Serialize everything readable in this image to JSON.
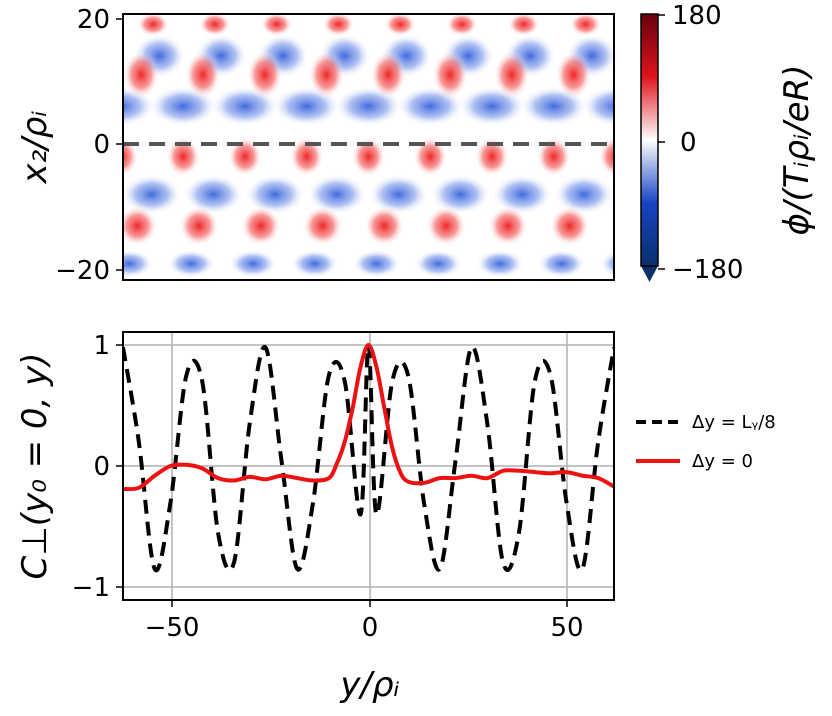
{
  "chart_data": [
    {
      "type": "heatmap",
      "panel": "top",
      "xrange": [
        -62,
        62
      ],
      "ylim": [
        -21,
        21
      ],
      "yticks": [
        "20",
        "0",
        "−20"
      ],
      "ytick_values": [
        20,
        0,
        -20
      ],
      "ylabel": "x₂/ρᵢ",
      "colorbar": {
        "label": "ϕ/(Tᵢρᵢ/eR)",
        "ticks": [
          "180",
          "0",
          "−180"
        ],
        "tick_values": [
          180,
          0,
          -180
        ],
        "range": [
          -180,
          180
        ],
        "colors": [
          "#08306b",
          "#1744c4",
          "#ffffff",
          "#e0141c",
          "#67000d"
        ]
      },
      "reference_line": {
        "y": 0,
        "style": "dashed",
        "color": "#555555"
      }
    },
    {
      "type": "line",
      "panel": "bottom",
      "xlim": [
        -62,
        62
      ],
      "ylim": [
        -1.1,
        1.1
      ],
      "xticks": [
        "−50",
        "0",
        "50"
      ],
      "xtick_values": [
        -50,
        0,
        50
      ],
      "yticks": [
        "1",
        "0",
        "−1"
      ],
      "ytick_values": [
        1,
        0,
        -1
      ],
      "xlabel": "y/ρᵢ",
      "ylabel": "C⊥(y₀ = 0, y)",
      "grid": true,
      "legend_position": "right",
      "series": [
        {
          "name": "Δy = L_y/8",
          "legend_label": "Δy = Lᵧ/8",
          "color": "#000000",
          "style": "dashed",
          "x": [
            -62,
            -58,
            -54,
            -50,
            -46,
            -42,
            -38,
            -34,
            -30,
            -26,
            -22,
            -18,
            -14,
            -10,
            -6,
            -2,
            0,
            2,
            6,
            10,
            14,
            18,
            22,
            26,
            30,
            34,
            38,
            42,
            46,
            50,
            54,
            58,
            62
          ],
          "y": [
            0.98,
            0.2,
            -0.85,
            -0.3,
            0.75,
            0.7,
            -0.55,
            -0.8,
            0.35,
            0.98,
            0.05,
            -0.85,
            -0.3,
            0.75,
            0.7,
            -0.4,
            1.0,
            -0.4,
            0.7,
            0.75,
            -0.3,
            -0.85,
            0.05,
            0.98,
            0.35,
            -0.8,
            -0.55,
            0.7,
            0.75,
            -0.3,
            -0.85,
            0.2,
            0.98
          ]
        },
        {
          "name": "Δy = 0",
          "legend_label": "Δy = 0",
          "color": "#ee1111",
          "style": "solid",
          "x": [
            -62,
            -58,
            -54,
            -50,
            -46,
            -42,
            -38,
            -34,
            -30,
            -26,
            -22,
            -18,
            -14,
            -10,
            -8,
            -6,
            -4,
            -2,
            0,
            2,
            4,
            6,
            8,
            10,
            14,
            18,
            22,
            26,
            30,
            34,
            38,
            42,
            46,
            50,
            54,
            58,
            62
          ],
          "y": [
            -0.19,
            -0.18,
            -0.08,
            0.0,
            0.01,
            -0.02,
            -0.1,
            -0.12,
            -0.09,
            -0.11,
            -0.08,
            -0.1,
            -0.12,
            -0.1,
            0.02,
            0.2,
            0.48,
            0.82,
            1.0,
            0.82,
            0.48,
            0.15,
            -0.05,
            -0.13,
            -0.14,
            -0.1,
            -0.1,
            -0.08,
            -0.1,
            -0.04,
            -0.04,
            -0.05,
            -0.06,
            -0.05,
            -0.08,
            -0.1,
            -0.17
          ]
        }
      ]
    }
  ]
}
